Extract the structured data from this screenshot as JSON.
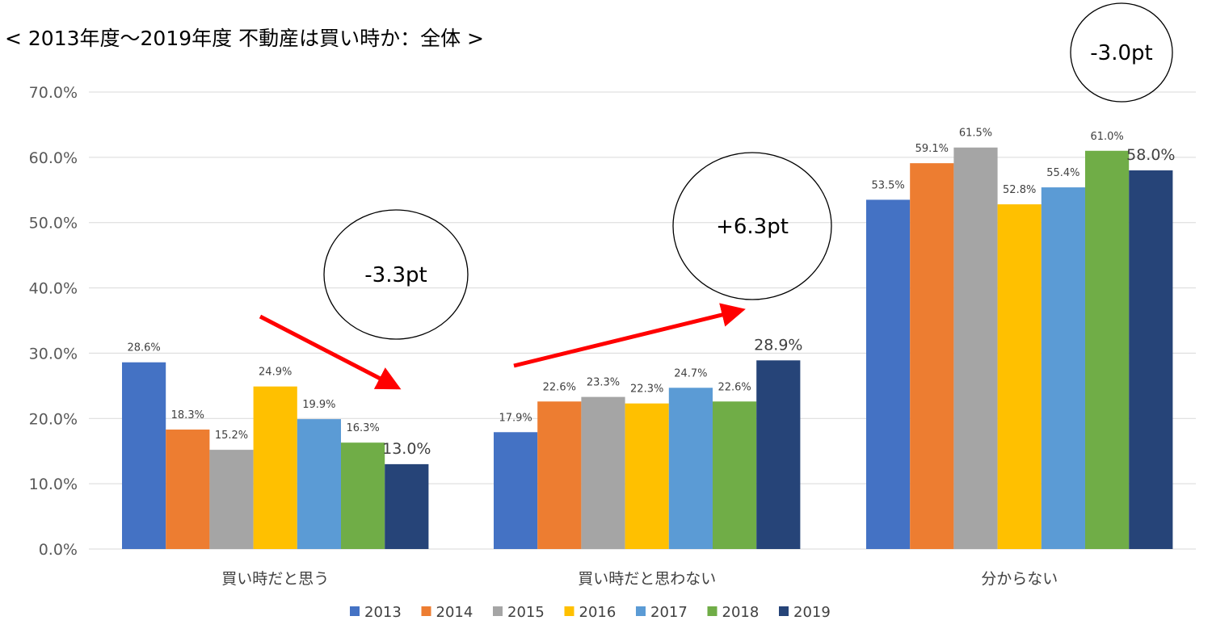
{
  "chart_data": {
    "type": "bar",
    "title": "< 2013年度～2019年度 不動産は買い時か：全体 >",
    "categories": [
      "買い時だと思う",
      "買い時だと思わない",
      "分からない"
    ],
    "series": [
      {
        "name": "2013",
        "color": "#4472C4",
        "values": [
          28.6,
          17.9,
          53.5
        ],
        "labels": [
          "28.6%",
          "17.9%",
          "53.5%"
        ]
      },
      {
        "name": "2014",
        "color": "#ED7D31",
        "values": [
          18.3,
          22.6,
          59.1
        ],
        "labels": [
          "18.3%",
          "22.6%",
          "59.1%"
        ]
      },
      {
        "name": "2015",
        "color": "#A5A5A5",
        "values": [
          15.2,
          23.3,
          61.5
        ],
        "labels": [
          "15.2%",
          "23.3%",
          "61.5%"
        ]
      },
      {
        "name": "2016",
        "color": "#FFC000",
        "values": [
          24.9,
          22.3,
          52.8
        ],
        "labels": [
          "24.9%",
          "22.3%",
          "52.8%"
        ]
      },
      {
        "name": "2017",
        "color": "#5B9BD5",
        "values": [
          19.9,
          24.7,
          55.4
        ],
        "labels": [
          "19.9%",
          "24.7%",
          "55.4%"
        ]
      },
      {
        "name": "2018",
        "color": "#70AD47",
        "values": [
          16.3,
          22.6,
          61.0
        ],
        "labels": [
          "16.3%",
          "22.6%",
          "61.0%"
        ]
      },
      {
        "name": "2019",
        "color": "#264478",
        "values": [
          13.0,
          28.9,
          58.0
        ],
        "labels": [
          "13.0%",
          "28.9%",
          "58.0%"
        ]
      }
    ],
    "ylim": [
      0,
      70
    ],
    "yticks": [
      "0.0%",
      "10.0%",
      "20.0%",
      "30.0%",
      "40.0%",
      "50.0%",
      "60.0%",
      "70.0%"
    ],
    "grid": true,
    "legend_position": "bottom",
    "annotations": [
      "-3.3pt",
      "+6.3pt",
      "-3.0pt"
    ],
    "arrow_color": "#FF0000"
  }
}
